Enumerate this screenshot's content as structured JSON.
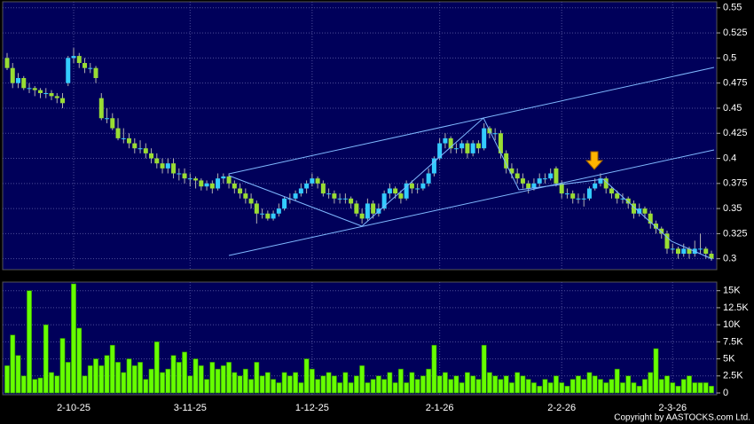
{
  "chart_data": [
    {
      "type": "candlestick",
      "up_color": "#33ccff",
      "down_color": "#99dd33",
      "grid": true,
      "ylim": [
        0.29,
        0.556
      ],
      "yticks": [
        0.3,
        0.325,
        0.35,
        0.375,
        0.4,
        0.425,
        0.45,
        0.475,
        0.5,
        0.525,
        0.55
      ],
      "series": [
        {
          "values": [
            [
              0.5,
              0.505,
              0.488,
              0.49
            ],
            [
              0.49,
              0.495,
              0.47,
              0.475
            ],
            [
              0.475,
              0.485,
              0.47,
              0.48
            ],
            [
              0.48,
              0.482,
              0.468,
              0.47
            ],
            [
              0.47,
              0.475,
              0.465,
              0.47
            ],
            [
              0.47,
              0.472,
              0.462,
              0.468
            ],
            [
              0.468,
              0.47,
              0.46,
              0.465
            ],
            [
              0.465,
              0.47,
              0.46,
              0.465
            ],
            [
              0.465,
              0.468,
              0.458,
              0.462
            ],
            [
              0.462,
              0.465,
              0.455,
              0.46
            ],
            [
              0.46,
              0.465,
              0.45,
              0.455
            ],
            [
              0.475,
              0.502,
              0.472,
              0.5
            ],
            [
              0.5,
              0.51,
              0.495,
              0.502
            ],
            [
              0.502,
              0.505,
              0.49,
              0.495
            ],
            [
              0.495,
              0.5,
              0.485,
              0.49
            ],
            [
              0.49,
              0.495,
              0.485,
              0.49
            ],
            [
              0.49,
              0.492,
              0.475,
              0.48
            ],
            [
              0.46,
              0.465,
              0.438,
              0.44
            ],
            [
              0.44,
              0.45,
              0.435,
              0.44
            ],
            [
              0.44,
              0.445,
              0.428,
              0.43
            ],
            [
              0.43,
              0.44,
              0.418,
              0.42
            ],
            [
              0.42,
              0.43,
              0.415,
              0.42
            ],
            [
              0.42,
              0.425,
              0.41,
              0.415
            ],
            [
              0.415,
              0.42,
              0.405,
              0.41
            ],
            [
              0.41,
              0.418,
              0.405,
              0.41
            ],
            [
              0.41,
              0.415,
              0.4,
              0.405
            ],
            [
              0.405,
              0.41,
              0.395,
              0.4
            ],
            [
              0.4,
              0.405,
              0.39,
              0.395
            ],
            [
              0.395,
              0.4,
              0.385,
              0.39
            ],
            [
              0.39,
              0.4,
              0.385,
              0.395
            ],
            [
              0.395,
              0.4,
              0.38,
              0.385
            ],
            [
              0.385,
              0.39,
              0.378,
              0.385
            ],
            [
              0.385,
              0.39,
              0.375,
              0.38
            ],
            [
              0.38,
              0.385,
              0.372,
              0.38
            ],
            [
              0.38,
              0.382,
              0.37,
              0.378
            ],
            [
              0.378,
              0.38,
              0.368,
              0.372
            ],
            [
              0.372,
              0.378,
              0.368,
              0.375
            ],
            [
              0.375,
              0.378,
              0.365,
              0.37
            ],
            [
              0.37,
              0.385,
              0.368,
              0.38
            ],
            [
              0.38,
              0.385,
              0.375,
              0.382
            ],
            [
              0.382,
              0.385,
              0.37,
              0.375
            ],
            [
              0.375,
              0.378,
              0.365,
              0.37
            ],
            [
              0.37,
              0.375,
              0.36,
              0.365
            ],
            [
              0.365,
              0.37,
              0.355,
              0.36
            ],
            [
              0.36,
              0.365,
              0.35,
              0.355
            ],
            [
              0.355,
              0.358,
              0.335,
              0.345
            ],
            [
              0.345,
              0.35,
              0.34,
              0.345
            ],
            [
              0.345,
              0.348,
              0.338,
              0.34
            ],
            [
              0.34,
              0.348,
              0.338,
              0.345
            ],
            [
              0.345,
              0.355,
              0.342,
              0.35
            ],
            [
              0.35,
              0.362,
              0.348,
              0.36
            ],
            [
              0.36,
              0.365,
              0.355,
              0.36
            ],
            [
              0.36,
              0.368,
              0.358,
              0.365
            ],
            [
              0.365,
              0.375,
              0.362,
              0.37
            ],
            [
              0.37,
              0.378,
              0.365,
              0.375
            ],
            [
              0.375,
              0.385,
              0.372,
              0.38
            ],
            [
              0.38,
              0.382,
              0.37,
              0.375
            ],
            [
              0.375,
              0.378,
              0.362,
              0.365
            ],
            [
              0.365,
              0.37,
              0.36,
              0.365
            ],
            [
              0.365,
              0.368,
              0.355,
              0.36
            ],
            [
              0.36,
              0.365,
              0.355,
              0.36
            ],
            [
              0.36,
              0.365,
              0.355,
              0.36
            ],
            [
              0.36,
              0.362,
              0.35,
              0.355
            ],
            [
              0.355,
              0.358,
              0.342,
              0.345
            ],
            [
              0.345,
              0.35,
              0.335,
              0.34
            ],
            [
              0.34,
              0.36,
              0.338,
              0.355
            ],
            [
              0.355,
              0.358,
              0.34,
              0.345
            ],
            [
              0.345,
              0.355,
              0.342,
              0.35
            ],
            [
              0.35,
              0.368,
              0.348,
              0.365
            ],
            [
              0.365,
              0.375,
              0.36,
              0.37
            ],
            [
              0.37,
              0.372,
              0.36,
              0.365
            ],
            [
              0.365,
              0.368,
              0.355,
              0.36
            ],
            [
              0.36,
              0.378,
              0.358,
              0.375
            ],
            [
              0.375,
              0.378,
              0.365,
              0.37
            ],
            [
              0.37,
              0.375,
              0.365,
              0.37
            ],
            [
              0.37,
              0.38,
              0.368,
              0.375
            ],
            [
              0.375,
              0.39,
              0.372,
              0.385
            ],
            [
              0.385,
              0.402,
              0.382,
              0.4
            ],
            [
              0.4,
              0.42,
              0.398,
              0.415
            ],
            [
              0.415,
              0.425,
              0.41,
              0.42
            ],
            [
              0.42,
              0.422,
              0.405,
              0.41
            ],
            [
              0.41,
              0.415,
              0.405,
              0.41
            ],
            [
              0.41,
              0.418,
              0.405,
              0.415
            ],
            [
              0.415,
              0.418,
              0.4,
              0.405
            ],
            [
              0.405,
              0.418,
              0.402,
              0.415
            ],
            [
              0.415,
              0.418,
              0.405,
              0.41
            ],
            [
              0.41,
              0.435,
              0.408,
              0.43
            ],
            [
              0.43,
              0.432,
              0.42,
              0.425
            ],
            [
              0.425,
              0.43,
              0.418,
              0.425
            ],
            [
              0.425,
              0.428,
              0.4,
              0.405
            ],
            [
              0.405,
              0.408,
              0.385,
              0.39
            ],
            [
              0.39,
              0.395,
              0.38,
              0.385
            ],
            [
              0.385,
              0.39,
              0.375,
              0.38
            ],
            [
              0.38,
              0.385,
              0.37,
              0.375
            ],
            [
              0.375,
              0.378,
              0.365,
              0.37
            ],
            [
              0.37,
              0.38,
              0.368,
              0.375
            ],
            [
              0.375,
              0.385,
              0.372,
              0.38
            ],
            [
              0.38,
              0.385,
              0.375,
              0.38
            ],
            [
              0.38,
              0.39,
              0.378,
              0.385
            ],
            [
              0.39,
              0.392,
              0.372,
              0.375
            ],
            [
              0.375,
              0.378,
              0.36,
              0.365
            ],
            [
              0.365,
              0.37,
              0.36,
              0.365
            ],
            [
              0.365,
              0.368,
              0.355,
              0.36
            ],
            [
              0.36,
              0.365,
              0.355,
              0.36
            ],
            [
              0.36,
              0.365,
              0.352,
              0.36
            ],
            [
              0.36,
              0.372,
              0.358,
              0.37
            ],
            [
              0.37,
              0.38,
              0.368,
              0.375
            ],
            [
              0.375,
              0.385,
              0.372,
              0.38
            ],
            [
              0.38,
              0.382,
              0.365,
              0.37
            ],
            [
              0.37,
              0.372,
              0.36,
              0.365
            ],
            [
              0.365,
              0.368,
              0.355,
              0.36
            ],
            [
              0.36,
              0.365,
              0.355,
              0.36
            ],
            [
              0.36,
              0.362,
              0.35,
              0.355
            ],
            [
              0.355,
              0.358,
              0.34,
              0.345
            ],
            [
              0.345,
              0.355,
              0.342,
              0.35
            ],
            [
              0.35,
              0.352,
              0.34,
              0.345
            ],
            [
              0.345,
              0.348,
              0.33,
              0.335
            ],
            [
              0.335,
              0.338,
              0.325,
              0.33
            ],
            [
              0.33,
              0.332,
              0.32,
              0.325
            ],
            [
              0.325,
              0.328,
              0.305,
              0.31
            ],
            [
              0.31,
              0.315,
              0.305,
              0.31
            ],
            [
              0.31,
              0.312,
              0.3,
              0.305
            ],
            [
              0.305,
              0.315,
              0.302,
              0.31
            ],
            [
              0.31,
              0.312,
              0.3,
              0.305
            ],
            [
              0.305,
              0.318,
              0.302,
              0.31
            ],
            [
              0.31,
              0.325,
              0.305,
              0.31
            ],
            [
              0.31,
              0.312,
              0.3,
              0.305
            ],
            [
              0.305,
              0.308,
              0.298,
              0.3
            ]
          ]
        }
      ]
    },
    {
      "type": "bar",
      "color": "#66ff00",
      "grid": true,
      "source": "Copyright by AASTOCKS.com Ltd.",
      "ylim": [
        0,
        16000
      ],
      "yticks": [
        0,
        {
          "value": 2500,
          "label": "2.5K"
        },
        {
          "value": 5000,
          "label": "5K"
        },
        {
          "value": 7500,
          "label": "7.5K"
        },
        {
          "value": 10000,
          "label": "10K"
        },
        {
          "value": 12500,
          "label": "12.5K"
        },
        {
          "value": 15000,
          "label": "15K"
        }
      ],
      "categories": [
        null,
        null,
        null,
        null,
        null,
        null,
        null,
        null,
        null,
        null,
        null,
        null,
        "2-10-25",
        null,
        null,
        null,
        null,
        null,
        null,
        null,
        null,
        null,
        null,
        null,
        null,
        null,
        null,
        null,
        null,
        null,
        null,
        null,
        null,
        "3-11-25",
        null,
        null,
        null,
        null,
        null,
        null,
        null,
        null,
        null,
        null,
        null,
        null,
        null,
        null,
        null,
        null,
        null,
        null,
        null,
        null,
        null,
        "1-12-25",
        null,
        null,
        null,
        null,
        null,
        null,
        null,
        null,
        null,
        null,
        null,
        null,
        null,
        null,
        null,
        null,
        null,
        null,
        null,
        null,
        null,
        null,
        "2-1-26",
        null,
        null,
        null,
        null,
        null,
        null,
        null,
        null,
        null,
        null,
        null,
        null,
        null,
        null,
        null,
        null,
        null,
        null,
        null,
        null,
        null,
        "2-2-26",
        null,
        null,
        null,
        null,
        null,
        null,
        null,
        null,
        null,
        null,
        null,
        null,
        null,
        null,
        null,
        null,
        null,
        null,
        null,
        "2-3-26",
        null,
        null,
        null,
        null,
        null,
        null,
        null
      ],
      "values": [
        4000,
        8500,
        5500,
        2500,
        15000,
        2000,
        2200,
        10000,
        3000,
        2500,
        8000,
        4500,
        16000,
        9500,
        2500,
        4000,
        5000,
        4000,
        5500,
        7000,
        4500,
        3000,
        5000,
        4000,
        4500,
        2000,
        3500,
        7500,
        3000,
        3500,
        5500,
        4500,
        6000,
        2500,
        5000,
        4000,
        2000,
        4500,
        3500,
        4000,
        4500,
        3000,
        2500,
        3500,
        2000,
        4500,
        2500,
        3000,
        2000,
        1500,
        3000,
        2500,
        3000,
        1500,
        5000,
        3500,
        2000,
        2500,
        3000,
        2500,
        1500,
        3000,
        1500,
        2500,
        4000,
        1500,
        2000,
        2500,
        2000,
        3000,
        1500,
        3500,
        1500,
        3000,
        2000,
        2500,
        3500,
        7000,
        2500,
        3000,
        2000,
        2500,
        1500,
        3000,
        2500,
        2000,
        7000,
        3000,
        2500,
        2000,
        2500,
        1500,
        3000,
        2500,
        2000,
        1500,
        1000,
        2000,
        1500,
        2500,
        1500,
        1000,
        2000,
        2500,
        2000,
        3000,
        2500,
        2000,
        1500,
        2000,
        3500,
        1500,
        2500,
        1500,
        1000,
        2000,
        3000,
        6500,
        2000,
        2500,
        1500,
        1000,
        2000,
        2500,
        1500,
        1500,
        1500,
        1000
      ]
    }
  ]
}
